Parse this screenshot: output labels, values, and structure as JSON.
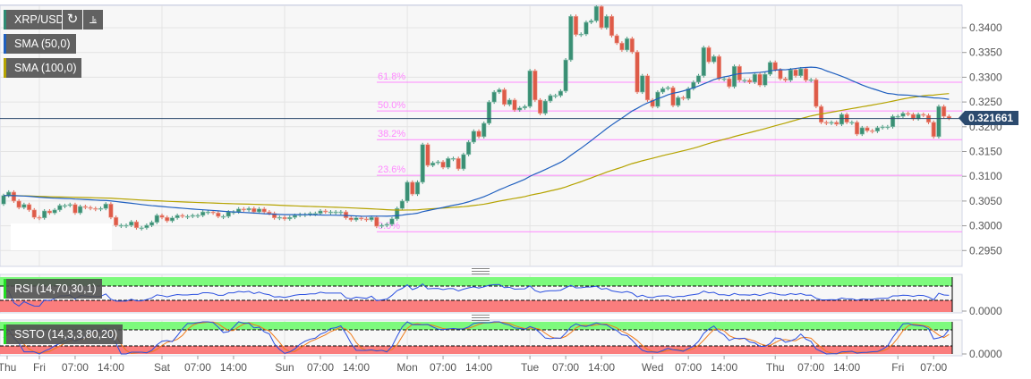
{
  "header": {
    "symbol": "XRP/USD",
    "refresh_icon": "refresh-icon",
    "chart_type_icon": "bar-chart-icon",
    "indicators": [
      {
        "label": "SMA (50,0)",
        "color": "#1f5fbf"
      },
      {
        "label": "SMA (100,0)",
        "color": "#b5a300"
      }
    ],
    "current_price": "0.321661"
  },
  "panels": {
    "rsi": {
      "label": "RSI (14,70,30,1)",
      "axis_label": "0.0000"
    },
    "ssto": {
      "label": "SSTO (14,3,3,80,20)",
      "axis_label": "0.0000"
    }
  },
  "chart_data": {
    "type": "candlestick",
    "title": "XRP/USD",
    "interval": "1 hour",
    "ylim": [
      0.2925,
      0.3445
    ],
    "grid": true,
    "colors": {
      "up": "#3a8f74",
      "down": "#de5b48",
      "sma50": "#1f5fbf",
      "sma100": "#b5a300",
      "fib": "#ff88ff",
      "price_line": "#2c4a6e"
    },
    "y_ticks": [
      "0.2950",
      "0.3000",
      "0.3050",
      "0.3100",
      "0.3150",
      "0.3200",
      "0.3250",
      "0.3300",
      "0.3350",
      "0.3400"
    ],
    "x_ticks": [
      "Thu",
      "Fri",
      "07:00",
      "14:00",
      "Sat",
      "07:00",
      "14:00",
      "Sun",
      "07:00",
      "14:00",
      "Mon",
      "07:00",
      "14:00",
      "Tue",
      "07:00",
      "14:00",
      "Wed",
      "07:00",
      "14:00",
      "Thu",
      "07:00",
      "14:00",
      "Fri",
      "07:00"
    ],
    "current_price": 0.321661,
    "open_first": 0.3044,
    "close": [
      0.3061,
      0.3068,
      0.305,
      0.3037,
      0.3043,
      0.3032,
      0.3017,
      0.3016,
      0.303,
      0.3026,
      0.3032,
      0.3041,
      0.3041,
      0.3043,
      0.3026,
      0.3039,
      0.3037,
      0.3035,
      0.3034,
      0.3035,
      0.3044,
      0.3017,
      0.3001,
      0.3001,
      0.3001,
      0.3008,
      0.2996,
      0.2996,
      0.3001,
      0.3007,
      0.3021,
      0.3017,
      0.301,
      0.3016,
      0.3021,
      0.3019,
      0.3019,
      0.3021,
      0.3021,
      0.3028,
      0.3028,
      0.3026,
      0.3019,
      0.3019,
      0.3028,
      0.3028,
      0.3034,
      0.3032,
      0.3035,
      0.3028,
      0.3034,
      0.3028,
      0.3025,
      0.3016,
      0.3017,
      0.3014,
      0.3017,
      0.3021,
      0.3023,
      0.3023,
      0.3025,
      0.3025,
      0.303,
      0.3028,
      0.3028,
      0.3028,
      0.3028,
      0.3016,
      0.3012,
      0.3016,
      0.3014,
      0.3012,
      0.3017,
      0.2999,
      0.3001,
      0.3003,
      0.3014,
      0.3035,
      0.305,
      0.3088,
      0.3064,
      0.3088,
      0.3164,
      0.3122,
      0.3127,
      0.3129,
      0.3118,
      0.3136,
      0.3136,
      0.3115,
      0.3144,
      0.3169,
      0.3191,
      0.318,
      0.3207,
      0.325,
      0.327,
      0.3275,
      0.3245,
      0.3254,
      0.3234,
      0.3238,
      0.3241,
      0.3313,
      0.3254,
      0.3227,
      0.3252,
      0.3263,
      0.3263,
      0.3272,
      0.3335,
      0.3423,
      0.3386,
      0.3387,
      0.3411,
      0.3414,
      0.3443,
      0.34,
      0.3423,
      0.3384,
      0.3369,
      0.3355,
      0.3378,
      0.3351,
      0.327,
      0.3303,
      0.3254,
      0.3241,
      0.327,
      0.3277,
      0.3279,
      0.3243,
      0.3259,
      0.3257,
      0.3277,
      0.329,
      0.3303,
      0.336,
      0.3331,
      0.3342,
      0.3297,
      0.3297,
      0.3281,
      0.3322,
      0.3294,
      0.3294,
      0.329,
      0.3306,
      0.3284,
      0.3306,
      0.333,
      0.3315,
      0.3297,
      0.3294,
      0.3315,
      0.3303,
      0.3317,
      0.3294,
      0.3295,
      0.3241,
      0.3209,
      0.3207,
      0.3209,
      0.3205,
      0.3225,
      0.3209,
      0.3209,
      0.3185,
      0.3198,
      0.3192,
      0.3191,
      0.3198,
      0.32,
      0.32,
      0.3221,
      0.3221,
      0.3227,
      0.3225,
      0.3216,
      0.3225,
      0.3223,
      0.3209,
      0.318,
      0.3241,
      0.3221,
      0.3217
    ],
    "fibonacci": [
      {
        "label": "61.8%",
        "price": 0.329
      },
      {
        "label": "50.0%",
        "price": 0.3232
      },
      {
        "label": "38.2%",
        "price": 0.3174
      },
      {
        "label": "23.6%",
        "price": 0.3102
      },
      {
        "label": "0.0%",
        "price": 0.2988
      }
    ],
    "rsi": {
      "period": 14,
      "overbought": 70,
      "oversold": 30
    },
    "ssto": {
      "k": 14,
      "smooth": 3,
      "d": 3,
      "overbought": 80,
      "oversold": 20,
      "colors": {
        "k": "#2a4fe0",
        "d": "#f07a1a"
      }
    }
  }
}
